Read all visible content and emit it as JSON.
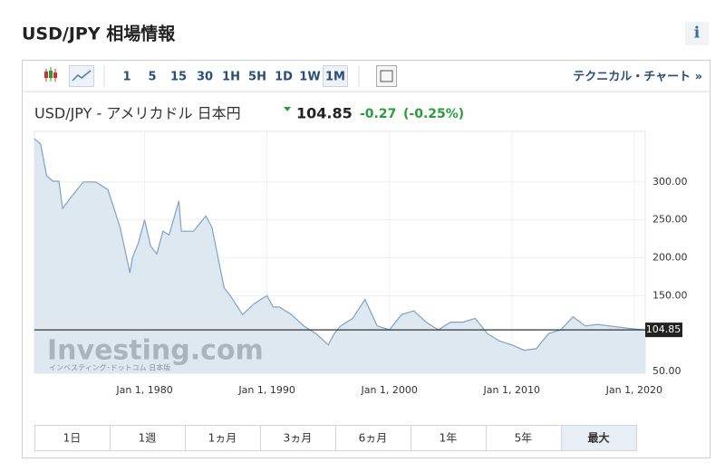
{
  "header": {
    "title": "USD/JPY 相場情報",
    "info": "i"
  },
  "toolbar": {
    "intervals": [
      "1",
      "5",
      "15",
      "30",
      "1H",
      "5H",
      "1D",
      "1W",
      "1M"
    ],
    "selected_interval": "1M",
    "technical_link": "テクニカル・チャート »"
  },
  "chart_data": {
    "type": "line",
    "title": "USD/JPY - アメリカドル 日本円",
    "last": 104.85,
    "change": -0.27,
    "change_pct": "(-0.25%)",
    "watermark": "Investing.com",
    "watermark_sub": "インベスティング･ドットコム 日本版",
    "x": [
      1971,
      1971.5,
      1972,
      1972.5,
      1973,
      1973.3,
      1974,
      1975,
      1976,
      1976.5,
      1977,
      1977.5,
      1978,
      1978.8,
      1979,
      1979.5,
      1980,
      1980.5,
      1981,
      1981.5,
      1982,
      1982.8,
      1983,
      1984,
      1985,
      1985.5,
      1986,
      1986.5,
      1987,
      1988,
      1989,
      1990,
      1990.5,
      1991,
      1992,
      1993,
      1994,
      1995,
      1995.5,
      1996,
      1997,
      1998,
      1999,
      2000,
      2001,
      2002,
      2003,
      2004,
      2005,
      2006,
      2007,
      2008,
      2009,
      2010,
      2011,
      2012,
      2013,
      2014,
      2015,
      2016,
      2017,
      2018,
      2019,
      2020,
      2020.9
    ],
    "series": [
      {
        "name": "USD/JPY",
        "color": "#7fa3c5",
        "values": [
          357,
          350,
          308,
          301,
          301,
          265,
          280,
          300,
          300,
          295,
          290,
          265,
          240,
          180,
          200,
          220,
          250,
          215,
          205,
          235,
          230,
          275,
          235,
          235,
          255,
          240,
          200,
          160,
          150,
          125,
          140,
          150,
          135,
          135,
          125,
          110,
          100,
          85,
          100,
          110,
          120,
          145,
          110,
          105,
          125,
          130,
          115,
          105,
          115,
          115,
          120,
          100,
          90,
          85,
          78,
          80,
          100,
          105,
          122,
          110,
          112,
          110,
          108,
          106,
          104.85
        ]
      }
    ],
    "xlim": [
      1971,
      2020.9
    ],
    "ylim": [
      47.6,
      366.7
    ],
    "xticks": [
      {
        "value": 1980,
        "label": "Jan 1, 1980"
      },
      {
        "value": 1990,
        "label": "Jan 1, 1990"
      },
      {
        "value": 2000,
        "label": "Jan 1, 2000"
      },
      {
        "value": 2010,
        "label": "Jan 1, 2010"
      },
      {
        "value": 2020,
        "label": "Jan 1, 2020"
      }
    ],
    "yticks": [
      {
        "value": 50,
        "label": "50.00"
      },
      {
        "value": 150,
        "label": "150.00"
      },
      {
        "value": 200,
        "label": "200.00"
      },
      {
        "value": 250,
        "label": "250.00"
      },
      {
        "value": 300,
        "label": "300.00"
      }
    ],
    "grid": true
  },
  "range_buttons": [
    "1日",
    "1週",
    "1ヵ月",
    "3ヵ月",
    "6ヵ月",
    "1年",
    "5年",
    "最大"
  ],
  "selected_range": "最大"
}
